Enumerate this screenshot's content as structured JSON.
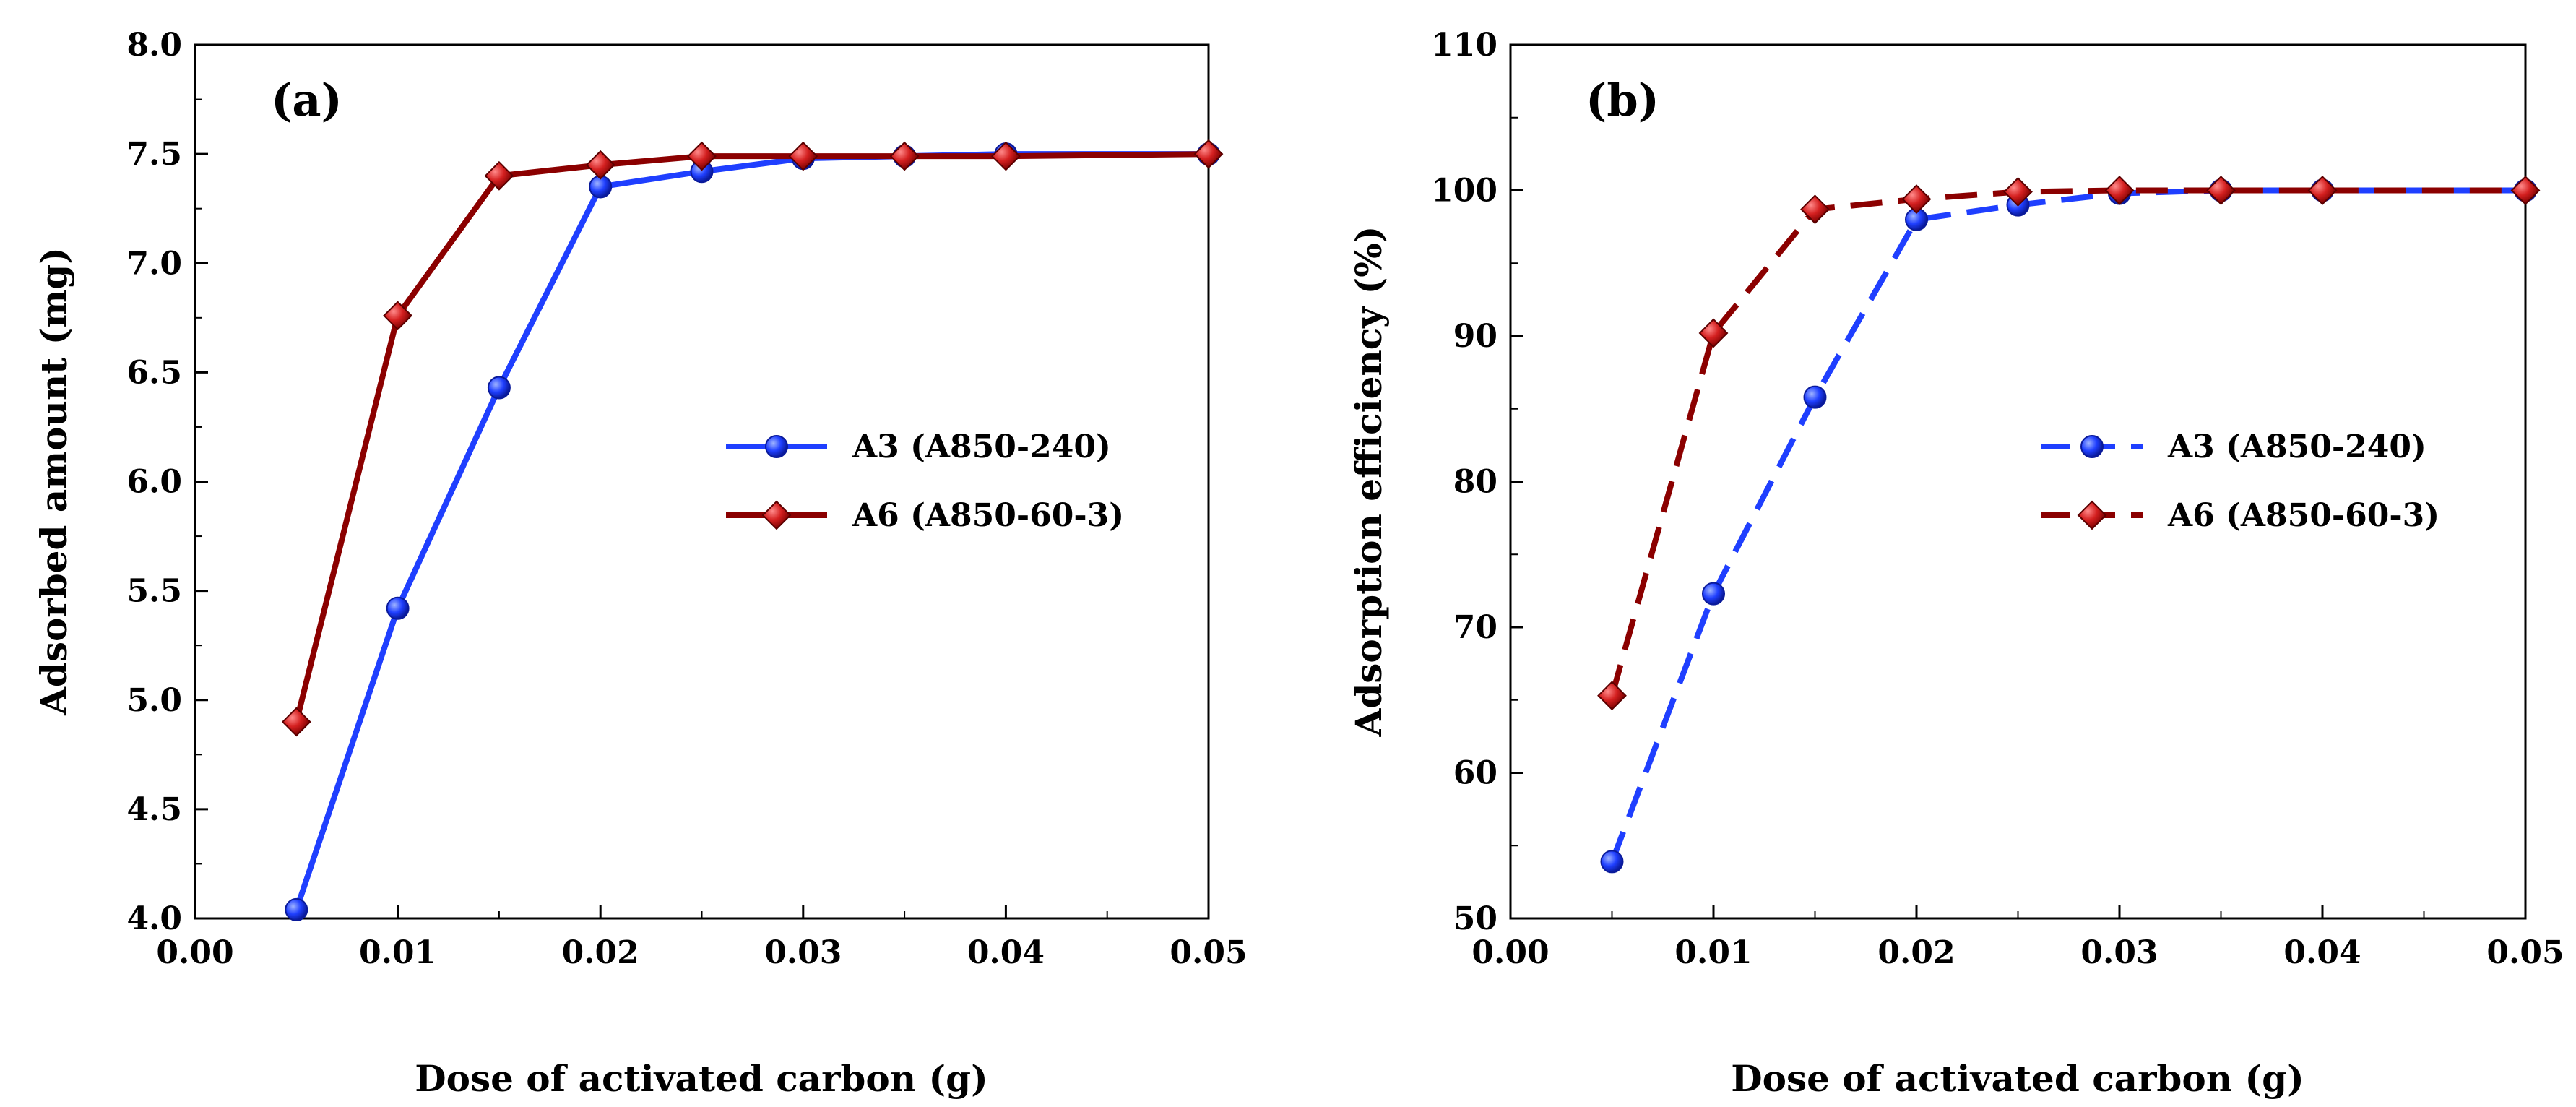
{
  "chart_data": [
    {
      "type": "line",
      "panel_label": "(a)",
      "xlabel": "Dose of activated carbon (g)",
      "ylabel": "Adsorbed amount (mg)",
      "xlim": [
        0.0,
        0.05
      ],
      "ylim": [
        4.0,
        8.0
      ],
      "x_ticks": [
        "0.00",
        "0.01",
        "0.02",
        "0.03",
        "0.04",
        "0.05"
      ],
      "y_ticks": [
        "4.0",
        "4.5",
        "5.0",
        "5.5",
        "6.0",
        "6.5",
        "7.0",
        "7.5",
        "8.0"
      ],
      "legend_position": "center-right",
      "grid": false,
      "series": [
        {
          "name": "A3 (A850-240)",
          "color": "#1f3fff",
          "marker": "circle",
          "line_style": "solid",
          "x": [
            0.005,
            0.01,
            0.015,
            0.02,
            0.025,
            0.03,
            0.035,
            0.04,
            0.05
          ],
          "y": [
            4.04,
            5.42,
            6.43,
            7.35,
            7.42,
            7.48,
            7.49,
            7.5,
            7.5
          ]
        },
        {
          "name": "A6 (A850-60-3)",
          "color": "#8b0000",
          "marker": "diamond",
          "line_style": "solid",
          "x": [
            0.005,
            0.01,
            0.015,
            0.02,
            0.025,
            0.03,
            0.035,
            0.04,
            0.05
          ],
          "y": [
            4.9,
            6.76,
            7.4,
            7.45,
            7.49,
            7.49,
            7.49,
            7.49,
            7.5
          ]
        }
      ]
    },
    {
      "type": "line",
      "panel_label": "(b)",
      "xlabel": "Dose of activated carbon (g)",
      "ylabel": "Adsorption efficiency (%)",
      "xlim": [
        0.0,
        0.05
      ],
      "ylim": [
        50,
        110
      ],
      "x_ticks": [
        "0.00",
        "0.01",
        "0.02",
        "0.03",
        "0.04",
        "0.05"
      ],
      "y_ticks": [
        "50",
        "60",
        "70",
        "80",
        "90",
        "100",
        "110"
      ],
      "legend_position": "center-right",
      "grid": false,
      "series": [
        {
          "name": "A3 (A850-240)",
          "color": "#1f3fff",
          "marker": "circle",
          "line_style": "dashed",
          "x": [
            0.005,
            0.01,
            0.015,
            0.02,
            0.025,
            0.03,
            0.035,
            0.04,
            0.05
          ],
          "y": [
            53.9,
            72.3,
            85.8,
            98.0,
            99.0,
            99.8,
            100.0,
            100.0,
            100.0
          ]
        },
        {
          "name": "A6 (A850-60-3)",
          "color": "#8b0000",
          "marker": "diamond",
          "line_style": "dashed",
          "x": [
            0.005,
            0.01,
            0.015,
            0.02,
            0.025,
            0.03,
            0.035,
            0.04,
            0.05
          ],
          "y": [
            65.3,
            90.2,
            98.7,
            99.4,
            99.9,
            100.0,
            100.0,
            100.0,
            100.0
          ]
        }
      ]
    }
  ]
}
